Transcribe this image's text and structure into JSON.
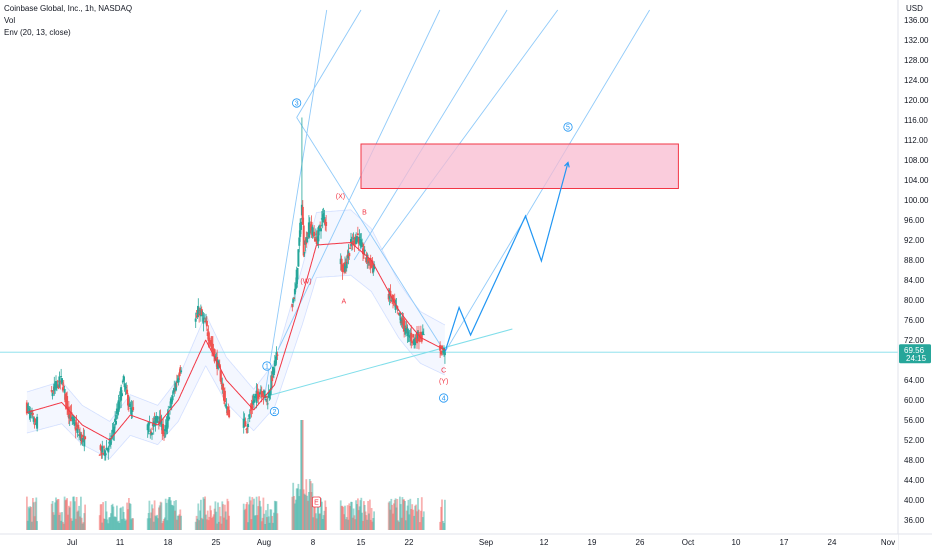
{
  "header": {
    "symbol_line": "Coinbase Global, Inc., 1h, NASDAQ",
    "volume_label": "Vol",
    "indicator_label": "Env (20, 13, close)"
  },
  "price_axis": {
    "currency": "USD",
    "last_price": "69.56",
    "countdown": "24:15",
    "last_price_color": "#26a69a"
  },
  "colors": {
    "up": "#26a69a",
    "down": "#ef5350",
    "envelope_mid": "#f23645",
    "envelope_band": "#2962ff",
    "trendline": "#80deea",
    "pitchfork": "#90caf9",
    "projection": "#2196f3",
    "target_zone": "#f8bbd0",
    "target_zone_border": "#f23645",
    "wave_label_blue": "#2196f3",
    "wave_label_red": "#f23645"
  },
  "wave_labels": [
    {
      "text": "1",
      "style": "circled",
      "color": "blue",
      "time": "Aug 1 10:00",
      "price": 66.8
    },
    {
      "text": "2",
      "style": "circled",
      "color": "blue",
      "time": "Aug 2 12:00",
      "price": 57.7
    },
    {
      "text": "3",
      "style": "circled",
      "color": "blue",
      "time": "Aug 5 16:00",
      "price": 119.4
    },
    {
      "text": "4",
      "style": "circled",
      "color": "blue",
      "time": "Aug 26 12:00",
      "price": 60.4
    },
    {
      "text": "5",
      "style": "circled",
      "color": "blue",
      "time": "Sep 15 12:00",
      "price": 114.6
    },
    {
      "text": "(W)",
      "style": "plain",
      "color": "red",
      "time": "Aug 7 00:00",
      "price": 83.8
    },
    {
      "text": "(X)",
      "style": "plain",
      "color": "red",
      "time": "Aug 12 00:00",
      "price": 100.8
    },
    {
      "text": "(Y)",
      "style": "plain",
      "color": "red",
      "time": "Aug 26 12:00",
      "price": 63.8
    },
    {
      "text": "A",
      "style": "plain",
      "color": "red",
      "time": "Aug 12 12:00",
      "price": 79.8
    },
    {
      "text": "B",
      "style": "plain",
      "color": "red",
      "time": "Aug 15 12:00",
      "price": 97.6
    },
    {
      "text": "C",
      "style": "plain",
      "color": "red",
      "time": "Aug 26 12:00",
      "price": 66.0
    },
    {
      "text": "E",
      "style": "boxed",
      "color": "red",
      "time": "Aug 8 12:00",
      "price": 39.6
    }
  ],
  "chart_data": {
    "type": "candlestick",
    "title": "Coinbase Global, Inc., 1h, NASDAQ",
    "ylabel": "USD",
    "ylim": [
      34.5,
      138
    ],
    "y_ticks": [
      "36.00",
      "40.00",
      "44.00",
      "48.00",
      "52.00",
      "56.00",
      "60.00",
      "64.00",
      "68.00",
      "72.00",
      "76.00",
      "80.00",
      "84.00",
      "88.00",
      "92.00",
      "96.00",
      "100.00",
      "104.00",
      "108.00",
      "112.00",
      "116.00",
      "120.00",
      "124.00",
      "128.00",
      "132.00",
      "136.00"
    ],
    "x_ticks": [
      "Jul",
      "11",
      "18",
      "25",
      "Aug",
      "8",
      "15",
      "22",
      "Sep",
      "12",
      "19",
      "26",
      "Oct",
      "10",
      "17",
      "24",
      "Nov"
    ],
    "x_tick_dates": [
      "Jul 4",
      "Jul 11",
      "Jul 18",
      "Jul 25",
      "Aug 1",
      "Aug 8",
      "Aug 15",
      "Aug 22",
      "Sep 1",
      "Sep 12",
      "Sep 19",
      "Sep 26",
      "Oct 1",
      "Oct 10",
      "Oct 17",
      "Oct 24",
      "Nov 1"
    ],
    "grid": false,
    "price_series_anchors": [
      {
        "t": "Jun 27 10:00",
        "price": 58.5
      },
      {
        "t": "Jun 28 16:00",
        "price": 55.0
      },
      {
        "t": "Jul 1 12:00",
        "price": 62.5
      },
      {
        "t": "Jul 2 12:00",
        "price": 64.0
      },
      {
        "t": "Jul 3 12:00",
        "price": 57.5
      },
      {
        "t": "Jul 5 12:00",
        "price": 52.0
      },
      {
        "t": "Jul 8 12:00",
        "price": 49.5
      },
      {
        "t": "Jul 9 12:00",
        "price": 51.0
      },
      {
        "t": "Jul 10 12:00",
        "price": 57.0
      },
      {
        "t": "Jul 11 12:00",
        "price": 64.0
      },
      {
        "t": "Jul 12 12:00",
        "price": 58.0
      },
      {
        "t": "Jul 15 12:00",
        "price": 54.0
      },
      {
        "t": "Jul 16 12:00",
        "price": 57.0
      },
      {
        "t": "Jul 17 12:00",
        "price": 53.0
      },
      {
        "t": "Jul 18 12:00",
        "price": 60.0
      },
      {
        "t": "Jul 19 12:00",
        "price": 65.0
      },
      {
        "t": "Jul 22 12:00",
        "price": 78.0
      },
      {
        "t": "Jul 23 12:00",
        "price": 75.0
      },
      {
        "t": "Jul 24 12:00",
        "price": 70.0
      },
      {
        "t": "Jul 25 12:00",
        "price": 66.0
      },
      {
        "t": "Jul 26 12:00",
        "price": 58.0
      },
      {
        "t": "Jul 29 12:00",
        "price": 55.0
      },
      {
        "t": "Jul 30 12:00",
        "price": 60.0
      },
      {
        "t": "Jul 31 12:00",
        "price": 62.0
      },
      {
        "t": "Aug 1 12:00",
        "price": 60.0
      },
      {
        "t": "Aug 2 12:00",
        "price": 67.0
      },
      {
        "t": "Aug 5 12:00",
        "price": 82.0
      },
      {
        "t": "Aug 6 10:00",
        "price": 99.0
      },
      {
        "t": "Aug 6 16:00",
        "price": 90.0
      },
      {
        "t": "Aug 7 12:00",
        "price": 95.0
      },
      {
        "t": "Aug 8 12:00",
        "price": 92.0
      },
      {
        "t": "Aug 9 12:00",
        "price": 97.0
      },
      {
        "t": "Aug 12 12:00",
        "price": 86.0
      },
      {
        "t": "Aug 13 12:00",
        "price": 91.0
      },
      {
        "t": "Aug 14 12:00",
        "price": 93.0
      },
      {
        "t": "Aug 15 12:00",
        "price": 89.0
      },
      {
        "t": "Aug 16 12:00",
        "price": 87.0
      },
      {
        "t": "Aug 19 12:00",
        "price": 80.0
      },
      {
        "t": "Aug 20 12:00",
        "price": 77.0
      },
      {
        "t": "Aug 21 12:00",
        "price": 74.0
      },
      {
        "t": "Aug 22 12:00",
        "price": 72.0
      },
      {
        "t": "Aug 23 12:00",
        "price": 73.0
      },
      {
        "t": "Aug 26 16:00",
        "price": 69.56
      }
    ],
    "spike_high": {
      "t": "Aug 6 10:00",
      "price": 116.5
    },
    "envelope_mid_anchors": [
      {
        "t": "Jun 27 10:00",
        "price": 57.5
      },
      {
        "t": "Jul 2 12:00",
        "price": 59.5
      },
      {
        "t": "Jul 5 12:00",
        "price": 55.0
      },
      {
        "t": "Jul 9 12:00",
        "price": 52.0
      },
      {
        "t": "Jul 12 12:00",
        "price": 57.0
      },
      {
        "t": "Jul 16 12:00",
        "price": 55.0
      },
      {
        "t": "Jul 19 12:00",
        "price": 60.0
      },
      {
        "t": "Jul 23 12:00",
        "price": 72.0
      },
      {
        "t": "Jul 26 12:00",
        "price": 64.0
      },
      {
        "t": "Jul 30 12:00",
        "price": 58.0
      },
      {
        "t": "Aug 2 12:00",
        "price": 63.0
      },
      {
        "t": "Aug 6 12:00",
        "price": 81.0
      },
      {
        "t": "Aug 8 12:00",
        "price": 91.0
      },
      {
        "t": "Aug 13 12:00",
        "price": 91.5
      },
      {
        "t": "Aug 16 12:00",
        "price": 88.0
      },
      {
        "t": "Aug 20 12:00",
        "price": 78.0
      },
      {
        "t": "Aug 23 12:00",
        "price": 72.5
      },
      {
        "t": "Aug 26 16:00",
        "price": 70.0
      }
    ],
    "envelope_band_pct": 13,
    "target_zone": {
      "from": "Aug 15 00:00",
      "to": "Sep 30 00:00",
      "price_top": 111.2,
      "price_bottom": 102.3
    },
    "trendline": {
      "from": {
        "t": "Aug 2 00:00",
        "price": 61.0
      },
      "to": {
        "t": "Sep 6 00:00",
        "price": 74.2
      }
    },
    "horizontal_line_price": 69.56,
    "pitchfork_lines": [
      {
        "from": {
          "t": "Aug 1 00:00",
          "price": 60.0
        },
        "to": {
          "t": "Aug 10 00:00",
          "price": 138.0
        }
      },
      {
        "from": {
          "t": "Aug 5 16:00",
          "price": 116.5
        },
        "to": {
          "t": "Aug 15 00:00",
          "price": 138.0
        }
      },
      {
        "from": {
          "t": "Aug 5 16:00",
          "price": 116.5
        },
        "to": {
          "t": "Aug 26 16:00",
          "price": 69.56
        }
      },
      {
        "from": {
          "t": "Aug 3 00:00",
          "price": 70.0
        },
        "to": {
          "t": "Aug 26 00:00",
          "price": 138.0
        }
      },
      {
        "from": {
          "t": "Aug 14 00:00",
          "price": 88.0
        },
        "to": {
          "t": "Sep 5 00:00",
          "price": 138.0
        }
      },
      {
        "from": {
          "t": "Aug 18 00:00",
          "price": 90.0
        },
        "to": {
          "t": "Sep 14 00:00",
          "price": 138.0
        }
      },
      {
        "from": {
          "t": "Aug 26 16:00",
          "price": 69.56
        },
        "to": {
          "t": "Sep 27 00:00",
          "price": 138.0
        }
      }
    ],
    "projection_path": [
      {
        "t": "Aug 26 16:00",
        "price": 69.56
      },
      {
        "t": "Aug 28 12:00",
        "price": 78.5
      },
      {
        "t": "Aug 30 00:00",
        "price": 73.0
      },
      {
        "t": "Sep 8 12:00",
        "price": 96.8
      },
      {
        "t": "Sep 11 12:00",
        "price": 87.8
      },
      {
        "t": "Sep 15 12:00",
        "price": 107.5
      }
    ],
    "volume": {
      "note": "histogram of hourly volume, Jun 27 to Aug 26",
      "max_bar_date": "Aug 5 16:00"
    }
  }
}
